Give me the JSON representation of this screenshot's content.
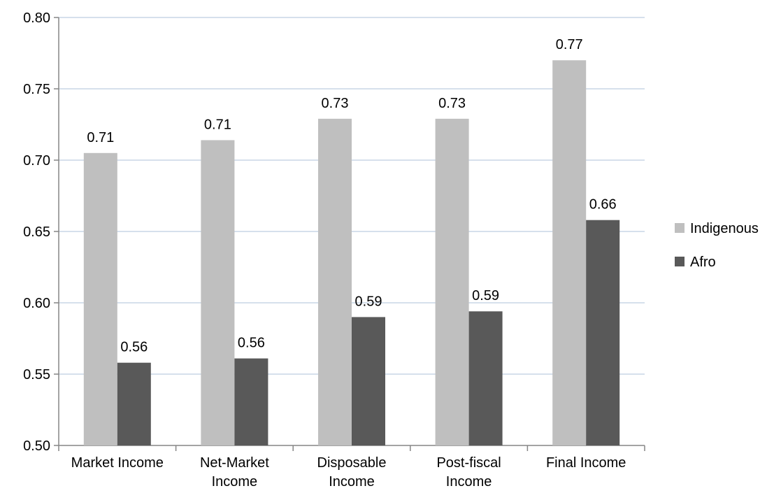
{
  "chart_data": {
    "type": "bar",
    "categories": [
      "Market Income",
      "Net-Market Income",
      "Disposable Income",
      "Post-fiscal Income",
      "Final Income"
    ],
    "category_lines": [
      [
        "Market Income"
      ],
      [
        "Net-Market",
        "Income"
      ],
      [
        "Disposable",
        "Income"
      ],
      [
        "Post-fiscal",
        "Income"
      ],
      [
        "Final Income"
      ]
    ],
    "series": [
      {
        "name": "Indigenous",
        "values": [
          0.705,
          0.714,
          0.729,
          0.729,
          0.77
        ],
        "labels": [
          "0.71",
          "0.71",
          "0.73",
          "0.73",
          "0.77"
        ],
        "color": "#bfbfbf"
      },
      {
        "name": "Afro",
        "values": [
          0.558,
          0.561,
          0.59,
          0.594,
          0.658
        ],
        "labels": [
          "0.56",
          "0.56",
          "0.59",
          "0.59",
          "0.66"
        ],
        "color": "#595959"
      }
    ],
    "ylim": [
      0.5,
      0.8
    ],
    "yticks": [
      "0.50",
      "0.55",
      "0.60",
      "0.65",
      "0.70",
      "0.75",
      "0.80"
    ],
    "grid": true,
    "legend_position": "right",
    "title": "",
    "xlabel": "",
    "ylabel": ""
  }
}
